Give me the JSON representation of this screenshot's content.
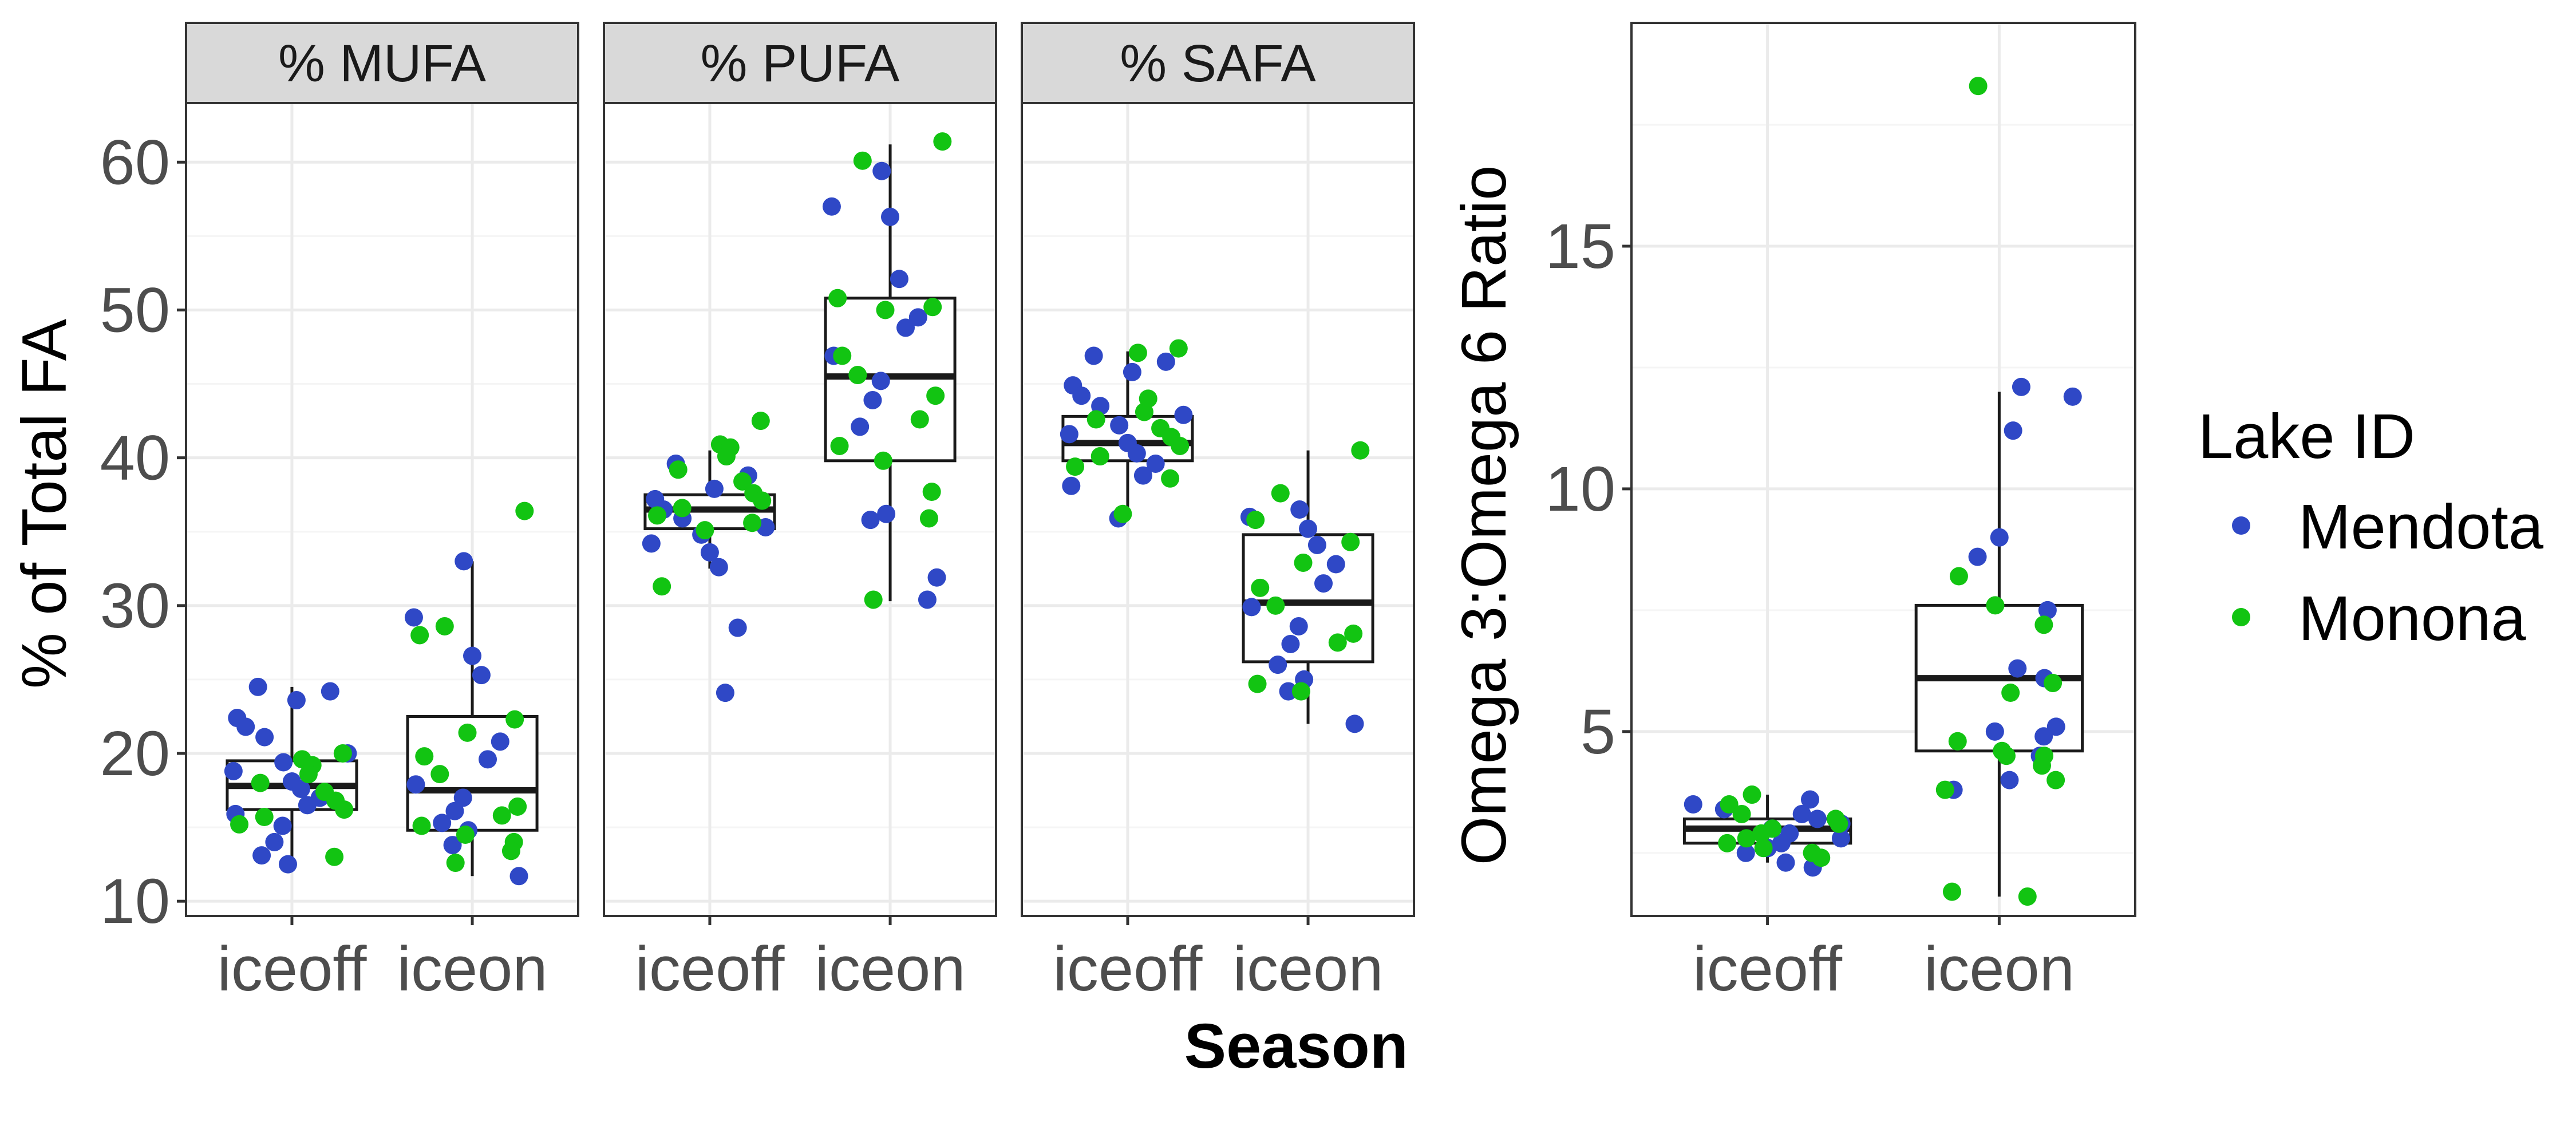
{
  "colors": {
    "Mendota": "#2f48c6",
    "Monona": "#12c412",
    "strip_fill": "#d9d9d9",
    "grid_major": "#ebebeb",
    "grid_minor": "#f5f5f5",
    "box": "#1a1a1a"
  },
  "chart_data": [
    {
      "type": "box",
      "panels": [
        "% MUFA",
        "% PUFA",
        "% SAFA"
      ],
      "categories": [
        "iceoff",
        "iceon"
      ],
      "xlabel": "Season",
      "ylabel": "% of Total FA",
      "ylim": [
        9,
        64
      ],
      "yticks": [
        10,
        20,
        30,
        40,
        50,
        60
      ],
      "boxes": {
        "% MUFA": {
          "iceoff": {
            "min": 12.5,
            "q1": 16.2,
            "median": 17.8,
            "q3": 19.5,
            "max": 24.5
          },
          "iceon": {
            "min": 11.7,
            "q1": 14.8,
            "median": 17.5,
            "q3": 22.5,
            "max": 33
          }
        },
        "% PUFA": {
          "iceoff": {
            "min": 32.5,
            "q1": 35.2,
            "median": 36.5,
            "q3": 37.5,
            "max": 40.5
          },
          "iceon": {
            "min": 30.3,
            "q1": 39.8,
            "median": 45.5,
            "q3": 50.8,
            "max": 61.2
          }
        },
        "% SAFA": {
          "iceoff": {
            "min": 36,
            "q1": 39.8,
            "median": 41,
            "q3": 42.8,
            "max": 47.2
          },
          "iceon": {
            "min": 22,
            "q1": 26.2,
            "median": 30.2,
            "q3": 34.8,
            "max": 40.5
          }
        }
      },
      "points": {
        "% MUFA": {
          "iceoff": {
            "Mendota": [
              24.5,
              24.2,
              23.6,
              22.4,
              21.8,
              21.1,
              20.0,
              19.4,
              18.8,
              18.1,
              17.6,
              17.0,
              16.5,
              15.9,
              15.1,
              14.0,
              13.1,
              12.5
            ],
            "Monona": [
              20.0,
              19.6,
              19.2,
              18.6,
              18.0,
              17.4,
              16.8,
              16.2,
              15.7,
              15.2,
              13.0
            ]
          },
          "iceon": {
            "Mendota": [
              33.0,
              29.2,
              26.6,
              25.3,
              20.8,
              19.6,
              17.9,
              17.0,
              16.1,
              15.3,
              14.8,
              13.8,
              11.7
            ],
            "Monona": [
              36.4,
              28.6,
              28.0,
              22.3,
              21.4,
              19.8,
              18.6,
              16.4,
              15.8,
              15.1,
              14.5,
              14.0,
              13.4,
              12.6
            ]
          }
        },
        "% PUFA": {
          "iceoff": {
            "Mendota": [
              39.6,
              38.8,
              37.9,
              37.2,
              36.5,
              35.9,
              35.3,
              34.8,
              34.2,
              33.6,
              32.6,
              28.5,
              24.1
            ],
            "Monona": [
              42.5,
              40.9,
              40.7,
              40.1,
              39.2,
              38.4,
              37.6,
              37.1,
              36.6,
              36.1,
              35.6,
              35.1,
              31.3
            ]
          },
          "iceon": {
            "Mendota": [
              59.4,
              57.0,
              56.3,
              52.1,
              49.5,
              48.8,
              46.9,
              45.2,
              43.9,
              42.1,
              36.2,
              35.8,
              31.9,
              30.4
            ],
            "Monona": [
              61.4,
              60.1,
              50.8,
              50.2,
              50.0,
              46.9,
              45.6,
              44.2,
              42.6,
              40.8,
              39.8,
              37.7,
              35.9,
              30.4
            ]
          }
        },
        "% SAFA": {
          "iceoff": {
            "Mendota": [
              46.9,
              46.5,
              45.8,
              44.9,
              44.2,
              43.5,
              42.9,
              42.2,
              41.6,
              41.0,
              40.3,
              39.6,
              38.8,
              38.1,
              35.9
            ],
            "Monona": [
              47.4,
              47.1,
              44.0,
              43.1,
              42.6,
              42.0,
              41.4,
              40.8,
              40.1,
              39.4,
              38.6,
              36.2
            ]
          },
          "iceon": {
            "Mendota": [
              36.5,
              36.0,
              35.2,
              34.1,
              32.8,
              31.5,
              29.9,
              28.6,
              27.4,
              26.0,
              25.0,
              24.2,
              22.0
            ],
            "Monona": [
              40.5,
              37.6,
              35.8,
              34.3,
              32.9,
              31.2,
              30.0,
              28.1,
              27.5,
              24.7,
              24.2
            ]
          }
        }
      }
    },
    {
      "type": "box",
      "categories": [
        "iceoff",
        "iceon"
      ],
      "xlabel": "",
      "ylabel": "Omega 3:Omega 6 Ratio",
      "ylim": [
        1.2,
        19.6
      ],
      "yticks": [
        5,
        10,
        15
      ],
      "boxes": {
        "iceoff": {
          "min": 2.3,
          "q1": 2.7,
          "median": 3.0,
          "q3": 3.2,
          "max": 3.7
        },
        "iceon": {
          "min": 1.6,
          "q1": 4.6,
          "median": 6.1,
          "q3": 7.6,
          "max": 12.0
        }
      },
      "points": {
        "iceoff": {
          "Mendota": [
            3.6,
            3.5,
            3.4,
            3.3,
            3.2,
            3.1,
            3.0,
            2.9,
            2.8,
            2.7,
            2.6,
            2.5,
            2.4,
            2.3,
            2.2
          ],
          "Monona": [
            3.7,
            3.5,
            3.3,
            3.2,
            3.1,
            3.0,
            2.9,
            2.8,
            2.7,
            2.6,
            2.5,
            2.4
          ]
        },
        "iceon": {
          "Mendota": [
            12.1,
            11.9,
            11.2,
            9.0,
            8.6,
            7.5,
            6.3,
            6.1,
            5.1,
            5.0,
            4.9,
            4.5,
            4.0,
            3.8
          ],
          "Monona": [
            18.3,
            8.2,
            7.6,
            7.2,
            6.0,
            5.8,
            4.8,
            4.6,
            4.5,
            4.5,
            4.3,
            4.0,
            3.8,
            1.7,
            1.6
          ]
        }
      }
    }
  ],
  "legend": {
    "title": "Lake ID",
    "entries": [
      "Mendota",
      "Monona"
    ]
  }
}
